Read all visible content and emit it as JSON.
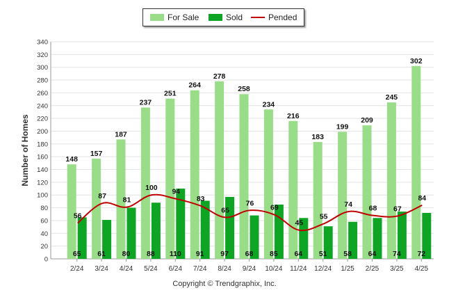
{
  "legend": {
    "for_sale": "For Sale",
    "sold": "Sold",
    "pended": "Pended"
  },
  "footer": "Copyright © Trendgraphix, Inc.",
  "chart_data": {
    "type": "bar",
    "ylabel": "Number of Homes",
    "xlabel": "",
    "ylim": [
      0,
      340
    ],
    "yticks": [
      0,
      20,
      40,
      60,
      80,
      100,
      120,
      140,
      160,
      180,
      200,
      220,
      240,
      260,
      280,
      300,
      320,
      340
    ],
    "grid": true,
    "legend_position": "top-center",
    "categories": [
      "2/24",
      "3/24",
      "4/24",
      "5/24",
      "6/24",
      "7/24",
      "8/24",
      "9/24",
      "10/24",
      "11/24",
      "12/24",
      "1/25",
      "2/25",
      "3/25",
      "4/25"
    ],
    "series": [
      {
        "name": "For Sale",
        "type": "bar",
        "color": "#99dd88",
        "values": [
          148,
          157,
          187,
          237,
          251,
          264,
          278,
          258,
          234,
          216,
          183,
          199,
          209,
          245,
          302
        ]
      },
      {
        "name": "Sold",
        "type": "bar",
        "color": "#0fa524",
        "values": [
          65,
          61,
          80,
          88,
          110,
          91,
          97,
          68,
          85,
          64,
          51,
          58,
          64,
          74,
          72
        ]
      },
      {
        "name": "Pended",
        "type": "line",
        "color": "#c00000",
        "values": [
          56,
          87,
          81,
          100,
          94,
          83,
          65,
          76,
          69,
          45,
          55,
          74,
          68,
          67,
          84
        ]
      }
    ]
  }
}
